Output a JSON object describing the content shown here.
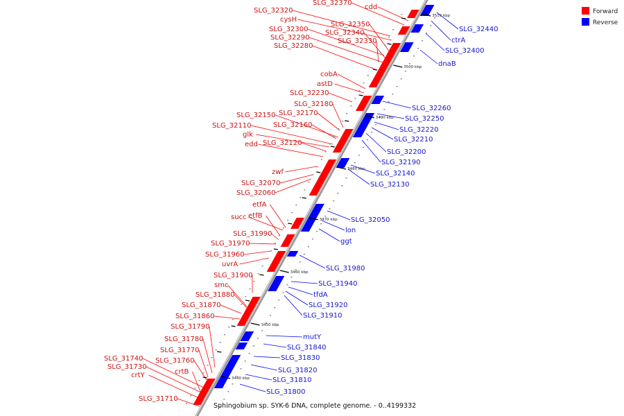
{
  "caption": "Sphingobium sp. SYK-6 DNA, complete genome. - 0..4199332",
  "legend": [
    {
      "label": "Forward",
      "color": "#ff0000"
    },
    {
      "label": "Reverse",
      "color": "#0000ff"
    }
  ],
  "colors": {
    "forward": "#ff0000",
    "reverse": "#0000ff",
    "backbone": "#999999"
  },
  "ticks": [
    "3440 kbp",
    "3450 kbp",
    "3460 kbp",
    "3470 kbp",
    "3480 kbp",
    "3490 kbp",
    "3500 kbp",
    "3510 kbp"
  ],
  "forward_genes": [
    "cdd",
    "SLG_32370",
    "SLG_32320",
    "cysH",
    "SLG_32350",
    "SLG_32300",
    "SLG_32340",
    "SLG_32290",
    "SLG_32330",
    "SLG_32280",
    "cobA",
    "astD",
    "SLG_32230",
    "SLG_32180",
    "SLG_32170",
    "SLG_32150",
    "SLG_32160",
    "SLG_32110",
    "glk",
    "SLG_32120",
    "edd",
    "zwf",
    "SLG_32070",
    "SLG_32060",
    "etfA",
    "succ",
    "etfB",
    "SLG_31990",
    "SLG_31970",
    "SLG_31960",
    "uvrA",
    "SLG_31900",
    "smc",
    "SLG_31880",
    "SLG_31870",
    "SLG_31860",
    "SLG_31790",
    "SLG_31780",
    "SLG_31770",
    "SLG_31760",
    "SLG_31740",
    "SLG_31730",
    "crtB",
    "crtY",
    "SLG_31710"
  ],
  "reverse_genes": [
    "SLG_32440",
    "ctrA",
    "SLG_32400",
    "dnaB",
    "SLG_32260",
    "SLG_32250",
    "SLG_32220",
    "SLG_32210",
    "SLG_32200",
    "SLG_32190",
    "SLG_32140",
    "SLG_32130",
    "SLG_32050",
    "lon",
    "ggt",
    "SLG_31980",
    "SLG_31940",
    "tfdA",
    "SLG_31920",
    "SLG_31910",
    "mutY",
    "SLG_31840",
    "SLG_31830",
    "SLG_31820",
    "SLG_31810",
    "SLG_31800"
  ]
}
